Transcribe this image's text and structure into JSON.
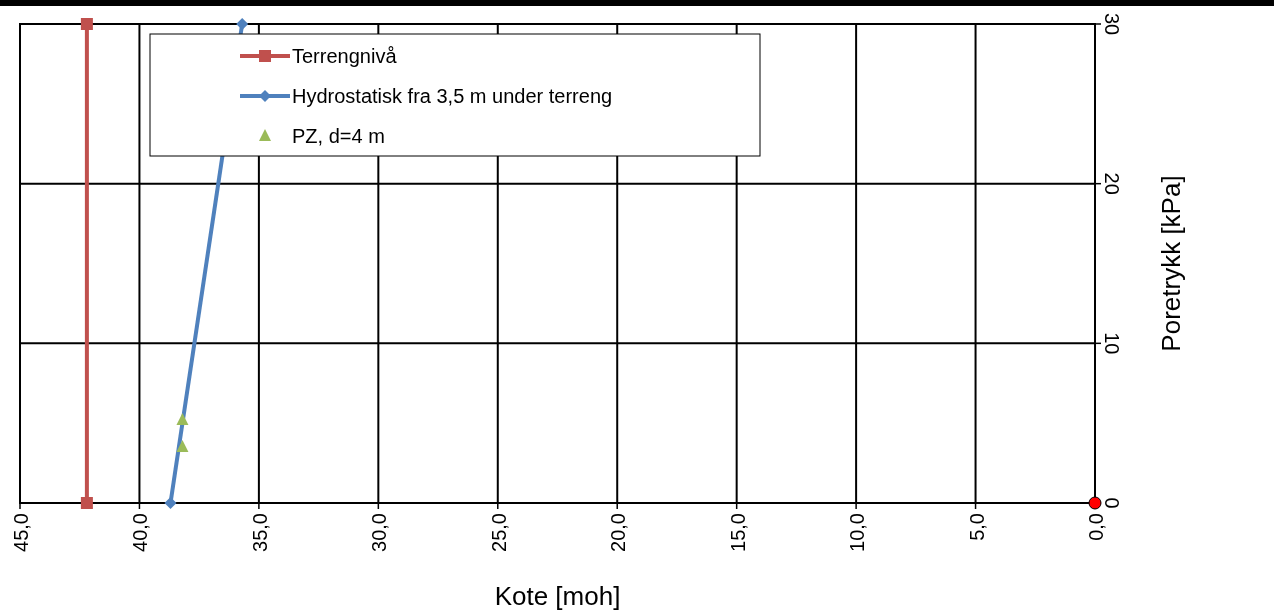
{
  "chart_data": {
    "type": "line",
    "xlabel": "Kote [moh]",
    "ylabel": "Poretrykk [kPa]",
    "xlim": [
      45,
      0
    ],
    "xticks": [
      {
        "value": 45,
        "label": "45,0"
      },
      {
        "value": 40,
        "label": "40,0"
      },
      {
        "value": 35,
        "label": "35,0"
      },
      {
        "value": 30,
        "label": "30,0"
      },
      {
        "value": 25,
        "label": "25,0"
      },
      {
        "value": 20,
        "label": "20,0"
      },
      {
        "value": 15,
        "label": "15,0"
      },
      {
        "value": 10,
        "label": "10,0"
      },
      {
        "value": 5,
        "label": "5,0"
      },
      {
        "value": 0,
        "label": "0,0"
      }
    ],
    "ylim": [
      0,
      30
    ],
    "yticks": [
      0,
      10,
      20,
      30
    ],
    "grid": true,
    "legend": "top left",
    "series": [
      {
        "name": "Terrengnivå",
        "color": "#c0504d",
        "marker": "square",
        "x": [
          42.2,
          42.2
        ],
        "values": [
          0,
          30
        ]
      },
      {
        "name": "Hydrostatisk fra 3,5 m under terreng",
        "color": "#4f81bd",
        "marker": "diamond",
        "x": [
          38.7,
          35.7
        ],
        "values": [
          0,
          30
        ]
      },
      {
        "name": "PZ, d=4 m",
        "color": "#9bbb59",
        "type": "scatter",
        "marker": "triangle",
        "x": [
          38.2,
          38.2
        ],
        "values": [
          5.2,
          3.5
        ]
      },
      {
        "color": "#ff0000",
        "type": "scatter",
        "marker": "circle",
        "x": [
          0
        ],
        "values": [
          0
        ]
      }
    ]
  }
}
